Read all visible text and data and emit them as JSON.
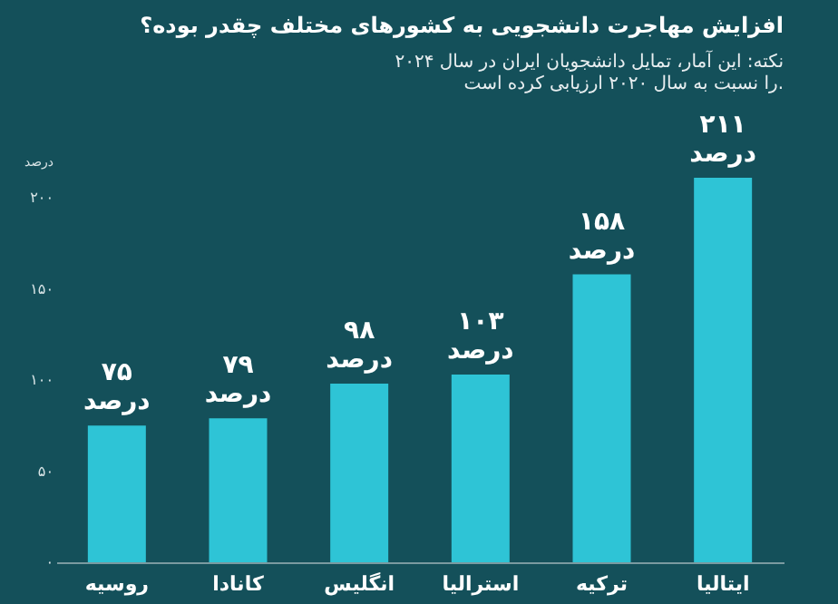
{
  "chart_data": {
    "type": "bar",
    "title": "افزایش مهاجرت دانشجویی به کشورهای مختلف چقدر بوده؟",
    "subtitle": [
      "نکته: این آمار، تمایل دانشجویان ایران در سال ۲۰۲۴",
      "را نسبت به سال ۲۰۲۰ ارزیابی کرده است."
    ],
    "ylabel": "درصد",
    "categories": [
      "روسیه",
      "کانادا",
      "انگلیس",
      "استرالیا",
      "ترکیه",
      "ایتالیا"
    ],
    "values": [
      75,
      79,
      98,
      103,
      158,
      211
    ],
    "value_labels": [
      "۷۵\nدرصد",
      "۷۹\nدرصد",
      "۹۸\nدرصد",
      "۱۰۳\nدرصد",
      "۱۵۸\nدرصد",
      "۲۱۱\nدرصد"
    ],
    "color": "#2ec4d6",
    "ylim": [
      0,
      211
    ],
    "yticks": [
      {
        "value": 0,
        "label": "۰"
      },
      {
        "value": 50,
        "label": "۵۰"
      },
      {
        "value": 100,
        "label": "۱۰۰"
      },
      {
        "value": 150,
        "label": "۱۵۰"
      },
      {
        "value": 200,
        "label": "۲۰۰"
      }
    ],
    "grid": false
  }
}
